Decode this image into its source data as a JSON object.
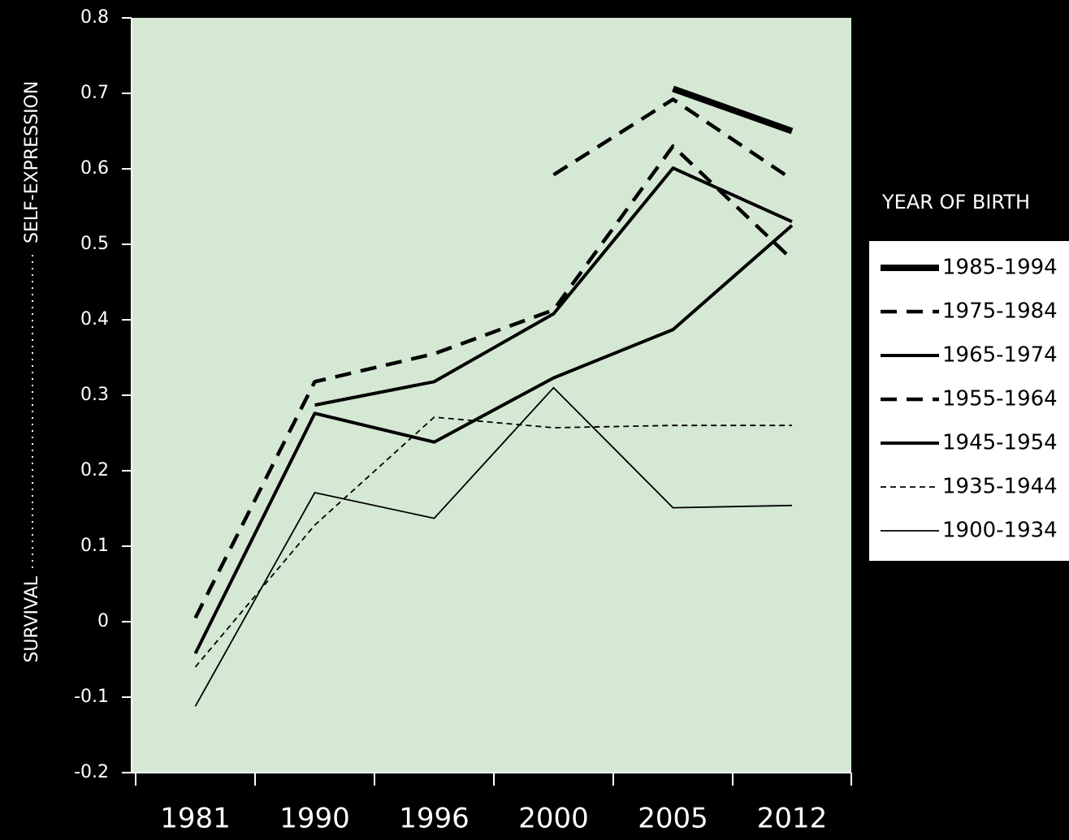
{
  "colors": {
    "background": "#000000",
    "plot_area": "#d5e8d4",
    "line": "#000000",
    "axis": "#ffffff",
    "text": "#ffffff",
    "legend_bg": "#ffffff",
    "legend_text": "#000000"
  },
  "chart_data": {
    "type": "line",
    "categories": [
      "1981",
      "1990",
      "1996",
      "2000",
      "2005",
      "2012"
    ],
    "ylim": [
      -0.2,
      0.8
    ],
    "yticks": [
      "-0.2",
      "-0.1",
      "0",
      "0.1",
      "0.2",
      "0.3",
      "0.4",
      "0.5",
      "0.6",
      "0.7",
      "0.8"
    ],
    "ylabel_left": "SURVIVAL",
    "ylabel_right": "SELF-EXPRESSION",
    "legend_title": "YEAR OF BIRTH",
    "legend_position": "right",
    "grid": false,
    "series": [
      {
        "name": "1985-1994",
        "style": "solid-thickest",
        "values": [
          null,
          null,
          null,
          null,
          0.706,
          0.65
        ]
      },
      {
        "name": "1975-1984",
        "style": "dashed-thick",
        "values": [
          null,
          null,
          null,
          0.592,
          0.692,
          0.586
        ]
      },
      {
        "name": "1965-1974",
        "style": "solid-thick",
        "values": [
          null,
          0.287,
          0.318,
          0.408,
          0.601,
          0.53
        ]
      },
      {
        "name": "1955-1964",
        "style": "dashed-thick",
        "values": [
          0.005,
          0.318,
          0.355,
          0.413,
          0.63,
          0.48
        ]
      },
      {
        "name": "1945-1954",
        "style": "solid-thick",
        "values": [
          -0.042,
          0.276,
          0.238,
          0.323,
          0.387,
          0.525
        ]
      },
      {
        "name": "1935-1944",
        "style": "dashed-thin",
        "values": [
          -0.06,
          0.128,
          0.271,
          0.257,
          0.26,
          0.26
        ]
      },
      {
        "name": "1900-1934",
        "style": "solid-thin",
        "values": [
          -0.112,
          0.171,
          0.137,
          0.31,
          0.151,
          0.154
        ]
      }
    ]
  }
}
